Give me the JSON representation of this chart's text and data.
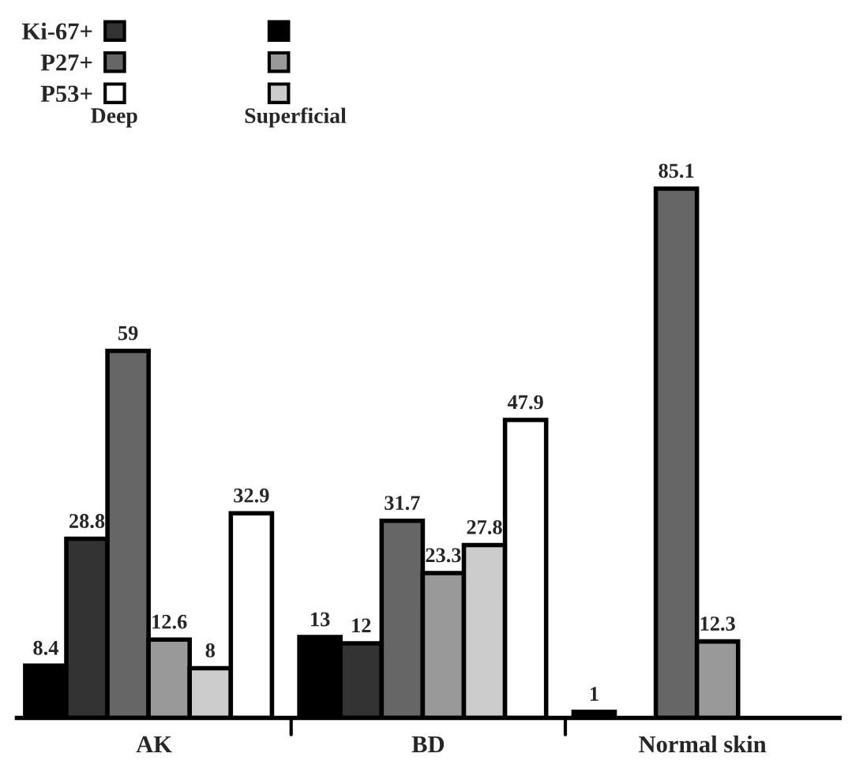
{
  "chart_data": {
    "type": "bar",
    "categories": [
      "AK",
      "BD",
      "Normal skin"
    ],
    "series": [
      {
        "color": "#000000",
        "values": [
          8.4,
          13,
          1
        ]
      },
      {
        "name": "Ki-67+",
        "color": "#333333",
        "values": [
          28.8,
          12,
          null
        ]
      },
      {
        "name": "P27+",
        "color": "#666666",
        "values": [
          59,
          31.7,
          85.1
        ]
      },
      {
        "color": "#999999",
        "values": [
          12.6,
          23.3,
          12.3
        ]
      },
      {
        "color": "#cccccc",
        "values": [
          8,
          27.8,
          null
        ]
      },
      {
        "name": "P53+",
        "color": "#ffffff",
        "values": [
          32.9,
          47.9,
          null
        ]
      }
    ],
    "annotations": [
      "Deep",
      "Superficial"
    ],
    "data_labels": true,
    "legend": "top left",
    "grid": false
  }
}
